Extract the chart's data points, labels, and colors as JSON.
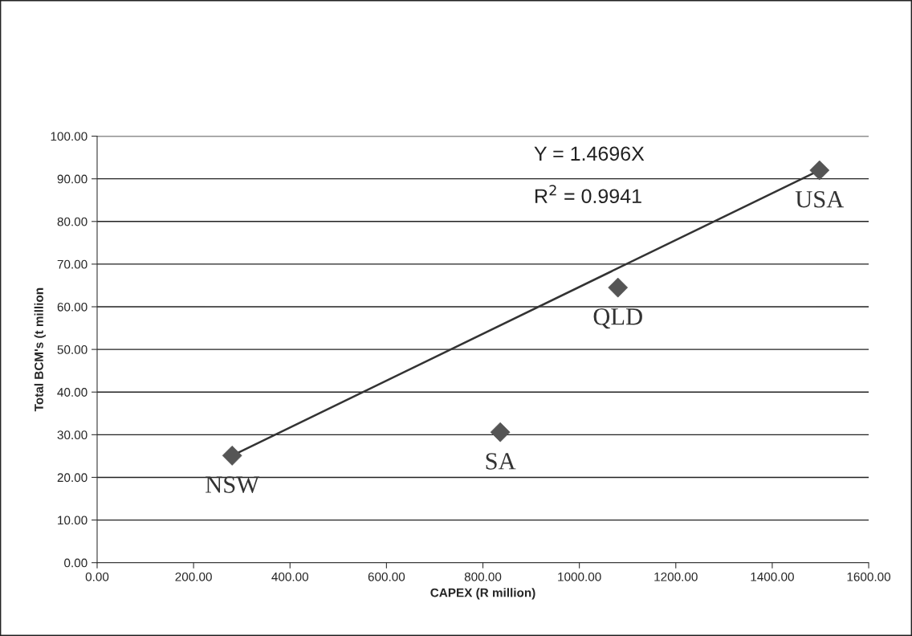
{
  "chart_data": {
    "type": "scatter",
    "xlabel": "CAPEX (R million)",
    "ylabel": "Total BCM's (t million",
    "series": [
      {
        "color": "#555555",
        "marker": "diamond",
        "x": [
          280,
          836,
          1080,
          1498
        ],
        "values": [
          25.1,
          30.6,
          64.5,
          92.0
        ]
      },
      {
        "type": "line",
        "color": "#333333",
        "marker": "none",
        "line_style": "solid",
        "x": [
          280,
          1498
        ],
        "values": [
          25.1,
          92.0
        ]
      }
    ],
    "annotations": [
      {
        "text": "NSW",
        "x": 280,
        "y": 25.1
      },
      {
        "text": "SA",
        "x": 836,
        "y": 30.6
      },
      {
        "text": "QLD",
        "x": 1080,
        "y": 64.5
      },
      {
        "text": "USA",
        "x": 1498,
        "y": 92.0
      },
      "Y = 1.4696X",
      "R$^{2}$ = 0.9941"
    ],
    "xlim": [
      0,
      1600
    ],
    "xticks": [
      {
        "value": 0,
        "label": "0.00"
      },
      {
        "value": 200,
        "label": "200.00"
      },
      {
        "value": 400,
        "label": "400.00"
      },
      {
        "value": 600,
        "label": "600.00"
      },
      {
        "value": 800,
        "label": "800.00"
      },
      {
        "value": 1000,
        "label": "1000.00"
      },
      {
        "value": 1200,
        "label": "1200.00"
      },
      {
        "value": 1400,
        "label": "1400.00"
      },
      {
        "value": 1600,
        "label": "1600.00"
      }
    ],
    "ylim": [
      0,
      100
    ],
    "yticks": [
      {
        "value": 0,
        "label": "0.00"
      },
      {
        "value": 10,
        "label": "10.00"
      },
      {
        "value": 20,
        "label": "20.00"
      },
      {
        "value": 30,
        "label": "30.00"
      },
      {
        "value": 40,
        "label": "40.00"
      },
      {
        "value": 50,
        "label": "50.00"
      },
      {
        "value": 60,
        "label": "60.00"
      },
      {
        "value": 70,
        "label": "70.00"
      },
      {
        "value": 80,
        "label": "80.00"
      },
      {
        "value": 90,
        "label": "90.00"
      },
      {
        "value": 100,
        "label": "100.00"
      }
    ],
    "grid": "y",
    "legend": false
  }
}
